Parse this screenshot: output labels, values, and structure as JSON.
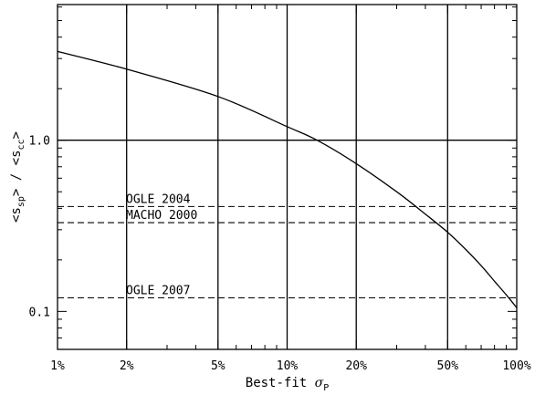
{
  "chart_data": {
    "type": "line",
    "x_scale": "log",
    "y_scale": "log",
    "xlim": [
      1,
      100
    ],
    "ylim": [
      0.06,
      6.2
    ],
    "xlabel": "Best-fit σ_P",
    "xlabel_parts": {
      "prefix": "Best-fit ",
      "symbol": "σ",
      "subscript": "P"
    },
    "ylabel_parts": {
      "open": "<s",
      "sub1": "sp",
      "mid": "> / <s",
      "sub2": "cc",
      "close": ">"
    },
    "x_ticks": [
      {
        "value": 1,
        "label": "1%"
      },
      {
        "value": 2,
        "label": "2%"
      },
      {
        "value": 5,
        "label": "5%"
      },
      {
        "value": 10,
        "label": "10%"
      },
      {
        "value": 20,
        "label": "20%"
      },
      {
        "value": 50,
        "label": "50%"
      },
      {
        "value": 100,
        "label": "100%"
      }
    ],
    "y_ticks": [
      {
        "value": 0.1,
        "label": "0.1"
      },
      {
        "value": 1.0,
        "label": "1.0"
      }
    ],
    "y_minor_ticks": [
      0.07,
      0.08,
      0.09,
      0.2,
      0.3,
      0.4,
      0.5,
      0.6,
      0.7,
      0.8,
      0.9,
      2,
      3,
      4,
      5,
      6
    ],
    "x_minor_ticks": [
      3,
      4,
      6,
      7,
      8,
      9,
      30,
      40,
      60,
      70,
      80,
      90
    ],
    "vertical_gridlines": [
      2,
      5,
      10,
      20,
      50
    ],
    "horizontal_gridlines": [
      1.0
    ],
    "curve": {
      "x": [
        1,
        2,
        5,
        10,
        13.5,
        20,
        30,
        40,
        50,
        60,
        70,
        80,
        90,
        100
      ],
      "y": [
        3.3,
        2.6,
        1.8,
        1.2,
        1.0,
        0.73,
        0.5,
        0.37,
        0.29,
        0.23,
        0.185,
        0.15,
        0.125,
        0.105
      ]
    },
    "reference_lines": [
      {
        "label": "OGLE 2004",
        "y": 0.41
      },
      {
        "label": "MACHO 2000",
        "y": 0.33
      },
      {
        "label": "OGLE 2007",
        "y": 0.12
      }
    ]
  }
}
